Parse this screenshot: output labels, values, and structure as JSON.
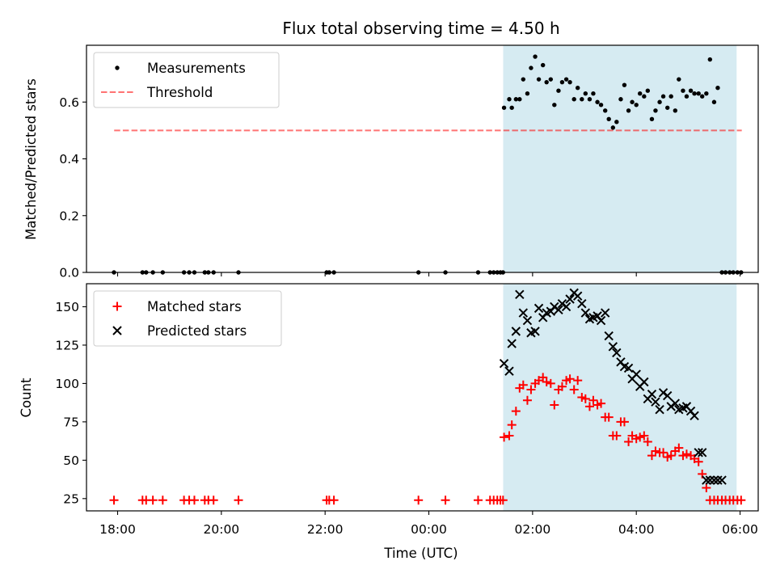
{
  "title": "Flux total observing time = 4.50 h",
  "colors": {
    "shade": "#add8e6",
    "threshold": "#ff0000",
    "matched": "#ff0000",
    "predicted": "#000000",
    "measurement": "#000000"
  },
  "chart_data": [
    {
      "type": "scatter",
      "ylabel": "Matched/Predicted stars",
      "ylim": [
        0,
        0.8
      ],
      "yticks": [
        "0.0",
        "0.2",
        "0.4",
        "0.6"
      ],
      "xlim": [
        -0.6,
        12.35
      ],
      "legend_position": "upper left",
      "shaded_interval": [
        "01:26",
        "05:56"
      ],
      "threshold": {
        "name": "Threshold",
        "value": 0.5,
        "x": [
          "17:56",
          "06:02"
        ],
        "style": "dashed"
      },
      "series": [
        {
          "name": "Measurements",
          "marker": "dot",
          "x": [
            -0.07,
            0.48,
            0.55,
            0.68,
            0.87,
            1.28,
            1.38,
            1.48,
            1.68,
            1.75,
            1.85,
            2.33,
            4.03,
            4.08,
            4.17,
            5.8,
            6.32,
            6.95,
            7.18,
            7.25,
            7.32,
            7.38,
            7.43,
            7.45,
            7.55,
            7.6,
            7.68,
            7.75,
            7.82,
            7.9,
            7.97,
            8.05,
            8.12,
            8.2,
            8.27,
            8.35,
            8.42,
            8.5,
            8.57,
            8.65,
            8.72,
            8.8,
            8.87,
            8.95,
            9.02,
            9.1,
            9.17,
            9.25,
            9.32,
            9.4,
            9.47,
            9.55,
            9.62,
            9.7,
            9.77,
            9.85,
            9.92,
            10.0,
            10.07,
            10.15,
            10.22,
            10.3,
            10.37,
            10.45,
            10.52,
            10.6,
            10.67,
            10.75,
            10.82,
            10.9,
            10.97,
            11.05,
            11.12,
            11.2,
            11.27,
            11.35,
            11.42,
            11.5,
            11.57,
            11.65,
            11.72,
            11.8,
            11.87,
            11.95,
            12.02
          ],
          "y": [
            0,
            0,
            0,
            0,
            0,
            0,
            0,
            0,
            0,
            0,
            0,
            0,
            0,
            0,
            0,
            0,
            0,
            0,
            0,
            0,
            0,
            0,
            0,
            0.58,
            0.61,
            0.58,
            0.61,
            0.61,
            0.68,
            0.63,
            0.72,
            0.76,
            0.68,
            0.73,
            0.67,
            0.68,
            0.59,
            0.64,
            0.67,
            0.68,
            0.67,
            0.61,
            0.65,
            0.61,
            0.63,
            0.61,
            0.63,
            0.6,
            0.59,
            0.57,
            0.54,
            0.51,
            0.53,
            0.61,
            0.66,
            0.57,
            0.6,
            0.59,
            0.63,
            0.62,
            0.64,
            0.54,
            0.57,
            0.6,
            0.62,
            0.58,
            0.62,
            0.57,
            0.68,
            0.64,
            0.62,
            0.64,
            0.63,
            0.63,
            0.62,
            0.63,
            0.75,
            0.6,
            0.65,
            0,
            0,
            0,
            0,
            0,
            0
          ]
        }
      ]
    },
    {
      "type": "scatter",
      "ylabel": "Count",
      "xlabel": "Time (UTC)",
      "ylim": [
        17,
        165
      ],
      "yticks": [
        "25",
        "50",
        "75",
        "100",
        "125",
        "150"
      ],
      "xlim": [
        -0.6,
        12.35
      ],
      "xticks": [
        "18:00",
        "20:00",
        "22:00",
        "00:00",
        "02:00",
        "04:00",
        "06:00"
      ],
      "legend_position": "upper left",
      "shaded_interval": [
        "01:26",
        "05:56"
      ],
      "series": [
        {
          "name": "Matched stars",
          "marker": "plus",
          "x": [
            -0.07,
            0.48,
            0.55,
            0.68,
            0.87,
            1.28,
            1.38,
            1.48,
            1.68,
            1.75,
            1.85,
            2.33,
            4.03,
            4.08,
            4.17,
            5.8,
            6.32,
            6.95,
            7.18,
            7.25,
            7.32,
            7.38,
            7.43,
            7.45,
            7.55,
            7.6,
            7.68,
            7.75,
            7.82,
            7.9,
            7.97,
            8.05,
            8.12,
            8.2,
            8.27,
            8.35,
            8.42,
            8.5,
            8.57,
            8.65,
            8.72,
            8.8,
            8.87,
            8.95,
            9.02,
            9.1,
            9.17,
            9.25,
            9.32,
            9.4,
            9.47,
            9.55,
            9.62,
            9.7,
            9.77,
            9.85,
            9.92,
            10.0,
            10.07,
            10.15,
            10.22,
            10.3,
            10.37,
            10.45,
            10.52,
            10.6,
            10.67,
            10.75,
            10.82,
            10.9,
            10.97,
            11.05,
            11.12,
            11.2,
            11.27,
            11.35,
            11.42,
            11.5,
            11.57,
            11.65,
            11.72,
            11.8,
            11.87,
            11.95,
            12.02
          ],
          "y": [
            24,
            24,
            24,
            24,
            24,
            24,
            24,
            24,
            24,
            24,
            24,
            24,
            24,
            24,
            24,
            24,
            24,
            24,
            24,
            24,
            24,
            24,
            24,
            65,
            66,
            73,
            82,
            97,
            99,
            89,
            96,
            100,
            102,
            104,
            101,
            100,
            86,
            96,
            98,
            102,
            103,
            96,
            102,
            91,
            90,
            85,
            89,
            86,
            87,
            78,
            78,
            66,
            66,
            75,
            75,
            62,
            66,
            64,
            65,
            66,
            62,
            53,
            56,
            55,
            55,
            52,
            53,
            56,
            58,
            53,
            54,
            53,
            51,
            49,
            41,
            32,
            24,
            24,
            24,
            24,
            24,
            24,
            24,
            24,
            24
          ]
        },
        {
          "name": "Predicted stars",
          "marker": "x",
          "x": [
            7.45,
            7.55,
            7.6,
            7.68,
            7.75,
            7.82,
            7.9,
            7.97,
            8.05,
            8.12,
            8.2,
            8.27,
            8.35,
            8.42,
            8.5,
            8.57,
            8.65,
            8.72,
            8.8,
            8.87,
            8.95,
            9.02,
            9.1,
            9.17,
            9.25,
            9.32,
            9.4,
            9.47,
            9.55,
            9.62,
            9.7,
            9.77,
            9.85,
            9.92,
            10.0,
            10.07,
            10.15,
            10.22,
            10.3,
            10.37,
            10.45,
            10.52,
            10.6,
            10.67,
            10.75,
            10.82,
            10.9,
            10.97,
            11.05,
            11.12,
            11.2,
            11.27,
            11.35,
            11.42,
            11.5,
            11.57,
            11.65
          ],
          "y": [
            113,
            108,
            126,
            134,
            158,
            146,
            141,
            133,
            134,
            149,
            143,
            146,
            147,
            150,
            148,
            152,
            150,
            155,
            159,
            157,
            152,
            146,
            142,
            143,
            144,
            141,
            146,
            131,
            124,
            120,
            114,
            111,
            110,
            103,
            106,
            98,
            101,
            90,
            93,
            88,
            83,
            94,
            92,
            85,
            87,
            83,
            84,
            85,
            82,
            79,
            55,
            55,
            37,
            37,
            37,
            37,
            37
          ]
        }
      ]
    }
  ]
}
